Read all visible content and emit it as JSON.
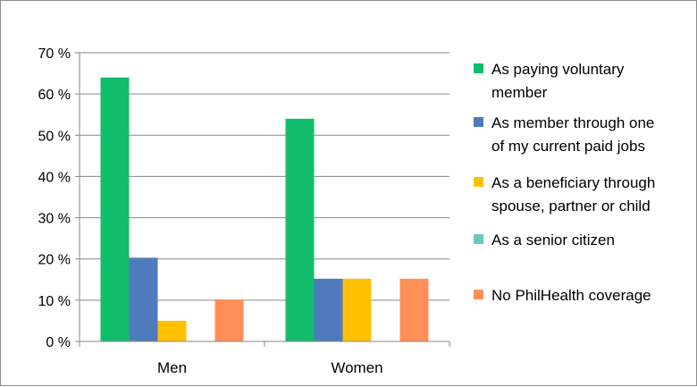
{
  "chart_data": {
    "type": "bar",
    "categories": [
      "Men",
      "Women"
    ],
    "series": [
      {
        "name": "As paying voluntary member",
        "name_lines": [
          "As paying voluntary",
          "member"
        ],
        "color": "#12BD6B",
        "values": [
          64,
          54
        ]
      },
      {
        "name": "As member through one of my current paid jobs",
        "name_lines": [
          "As member through one",
          "of my current paid jobs"
        ],
        "color": "#4F7BBD",
        "values": [
          20.3,
          15.2
        ]
      },
      {
        "name": "As a beneficiary through spouse, partner or child",
        "name_lines": [
          "As a beneficiary through",
          "spouse, partner or child"
        ],
        "color": "#FFC000",
        "values": [
          5,
          15.2
        ]
      },
      {
        "name": "As a senior citizen",
        "name_lines": [
          "As a senior citizen"
        ],
        "color": "#67C8C4",
        "values": [
          0,
          0
        ]
      },
      {
        "name": "No PhilHealth coverage",
        "name_lines": [
          "No PhilHealth coverage"
        ],
        "color": "#FF8F57",
        "values": [
          10.2,
          15.2
        ]
      }
    ],
    "yticks": [
      "0 %",
      "10 %",
      "20 %",
      "30 %",
      "40 %",
      "50 %",
      "60 %",
      "70 %"
    ],
    "ylim": [
      0,
      70
    ],
    "grid": true,
    "legend": "right",
    "title": "",
    "xlabel": "",
    "ylabel": ""
  }
}
